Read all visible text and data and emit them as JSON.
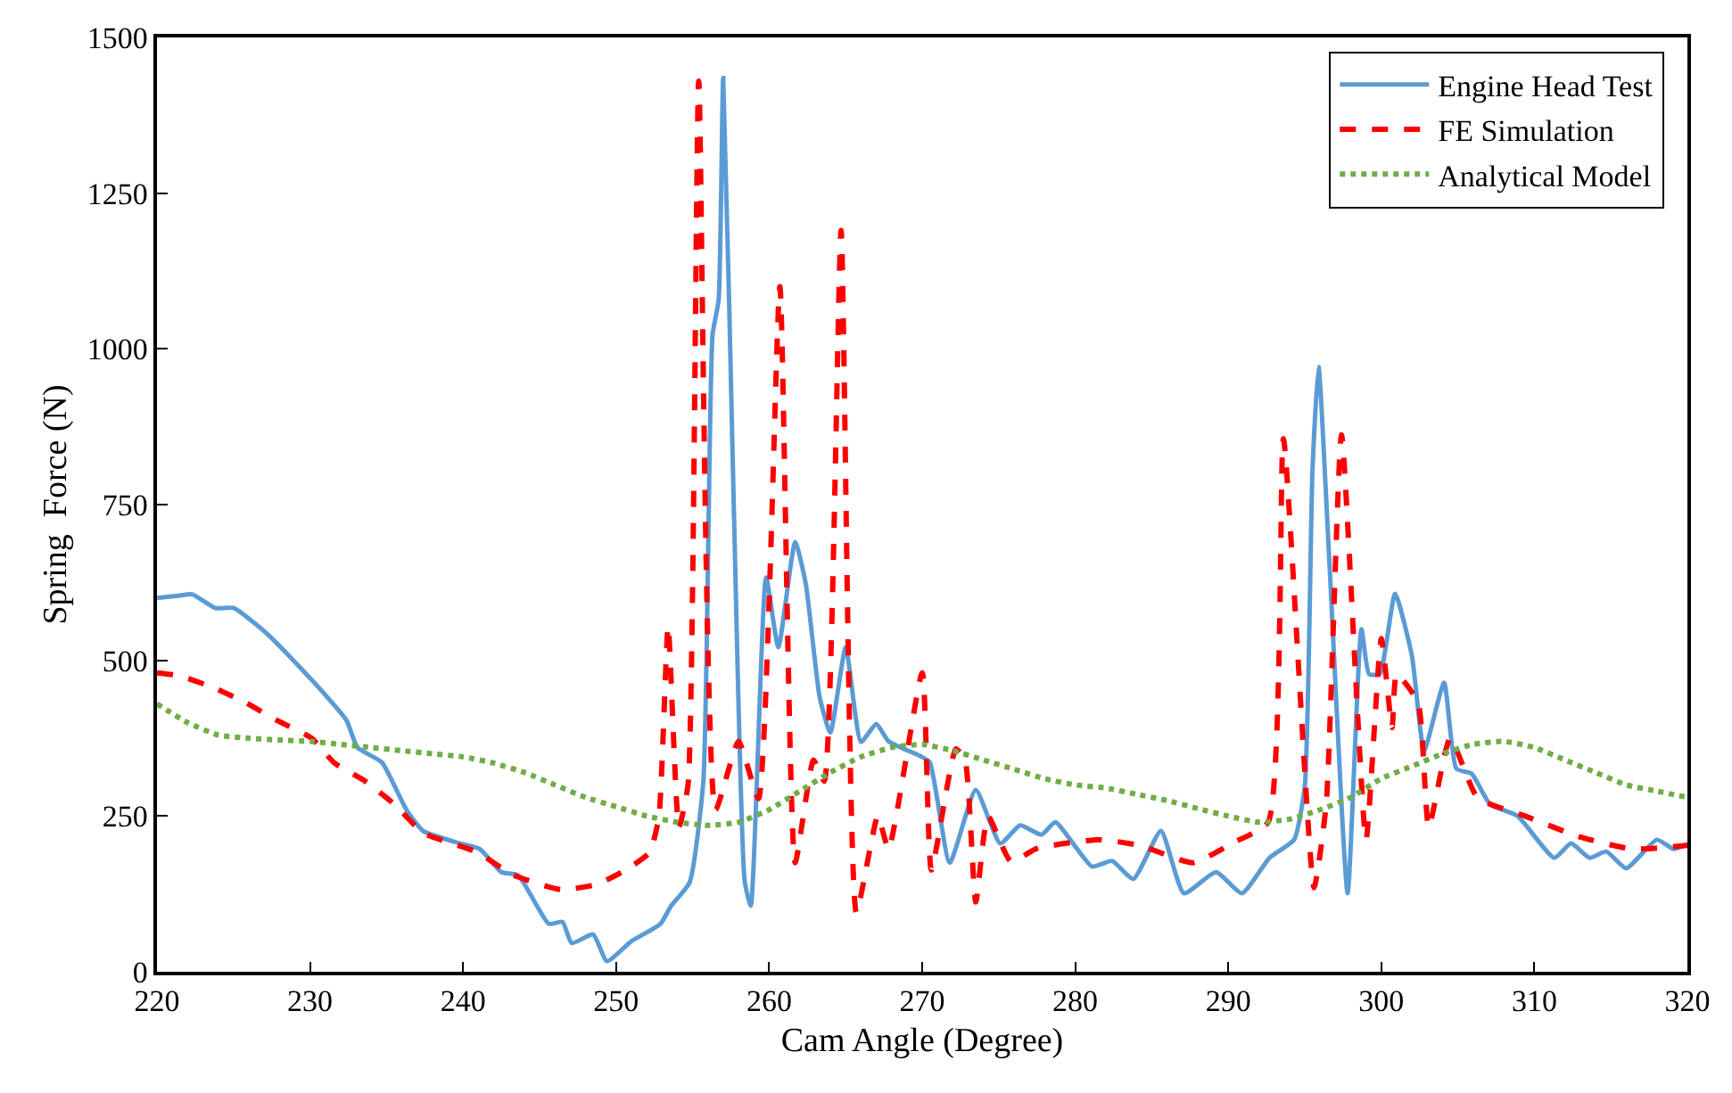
{
  "chart_data": {
    "type": "line",
    "xlabel": "Cam Angle (Degree)",
    "ylabel": "Spring  Force (N)",
    "xlim": [
      220,
      320
    ],
    "xticks": [
      220,
      230,
      240,
      250,
      260,
      270,
      280,
      290,
      300,
      310,
      320
    ],
    "ylim": [
      0,
      1500
    ],
    "yticks": [
      0,
      250,
      500,
      750,
      1000,
      1250,
      1500
    ],
    "legend": "top right",
    "marker": "none",
    "series": [
      {
        "name": "Engine Head Test",
        "color": "#5b9bd5",
        "line_style": "solid",
        "x": [
          220,
          221.5,
          222.3,
          223.8,
          225,
          227,
          229.3,
          231.3,
          232.4,
          233.1,
          234.7,
          236.3,
          237.4,
          239.8,
          241.1,
          242.5,
          243.6,
          245.6,
          246.5,
          247.1,
          248.5,
          249.4,
          251.0,
          252.9,
          253.6,
          254.8,
          255.7,
          256.3,
          256.7,
          257.0,
          257.7,
          258.4,
          258.8,
          259.8,
          260.6,
          261.7,
          262.4,
          263.3,
          264.0,
          265.0,
          266.0,
          267.0,
          267.8,
          269.9,
          270.5,
          271.8,
          273.5,
          275.1,
          276.4,
          277.8,
          278.7,
          281.1,
          282.4,
          283.8,
          285.6,
          287.1,
          289.2,
          290.9,
          292.7,
          294.3,
          295.0,
          295.5,
          295.9,
          296.6,
          297.8,
          298.7,
          299.2,
          299.9,
          300.9,
          302.0,
          302.8,
          304.1,
          304.9,
          305.9,
          307.1,
          308.9,
          311.3,
          312.4,
          313.6,
          314.7,
          316.0,
          318.0,
          319.1,
          320
        ],
        "values": [
          600,
          604,
          606,
          584,
          584,
          547,
          490,
          436,
          403,
          360,
          336,
          260,
          226,
          206,
          197,
          160,
          155,
          77,
          80,
          46,
          60,
          17,
          49,
          77,
          106,
          143,
          306,
          1022,
          1079,
          1435,
          736,
          146,
          106,
          633,
          521,
          690,
          622,
          441,
          384,
          521,
          369,
          398,
          370,
          346,
          336,
          175,
          292,
          206,
          235,
          220,
          240,
          169,
          178,
          149,
          226,
          126,
          160,
          126,
          183,
          212,
          298,
          804,
          971,
          661,
          126,
          550,
          478,
          478,
          607,
          507,
          355,
          464,
          326,
          318,
          269,
          250,
          183,
          206,
          183,
          193,
          166,
          212,
          197,
          205
        ]
      },
      {
        "name": "FE Simulation",
        "color": "#ff0000",
        "line_style": "dashed",
        "x": [
          220,
          221.5,
          223.8,
          225.8,
          227.8,
          230.1,
          231.6,
          233.6,
          235.5,
          237.4,
          240.9,
          243.3,
          246.4,
          248.7,
          250.6,
          252.2,
          252.8,
          253.4,
          254.1,
          254.7,
          255.4,
          256.5,
          258.0,
          259.3,
          260.7,
          261.7,
          262.9,
          263.6,
          264.7,
          265.7,
          267.1,
          267.8,
          270.0,
          270.6,
          272.2,
          272.8,
          273.5,
          274.3,
          275.8,
          277.5,
          281.5,
          284.2,
          287.7,
          290.3,
          292.6,
          293.6,
          295.6,
          296.4,
          297.4,
          299.0,
          300.0,
          300.7,
          301.0,
          302.4,
          303.1,
          304.5,
          306.3,
          309.4,
          312.9,
          316.4,
          320
        ],
        "values": [
          480,
          475,
          455,
          432,
          404,
          375,
          335,
          306,
          269,
          223,
          192,
          155,
          132,
          140,
          163,
          192,
          250,
          555,
          232,
          300,
          1430,
          260,
          370,
          278,
          1100,
          175,
          340,
          306,
          1190,
          95,
          250,
          197,
          480,
          163,
          358,
          340,
          112,
          250,
          177,
          198,
          212,
          203,
          175,
          207,
          240,
          856,
          135,
          269,
          862,
          212,
          535,
          392,
          478,
          432,
          232,
          375,
          279,
          250,
          217,
          197,
          203
        ]
      },
      {
        "name": "Analytical Model",
        "color": "#70ad47",
        "line_style": "dotted",
        "x": [
          220,
          222,
          224,
          226,
          228,
          230,
          232,
          234,
          236,
          238,
          240,
          242,
          244,
          246,
          248,
          250,
          252,
          254,
          256,
          258,
          260,
          262,
          264,
          266,
          268,
          270,
          272,
          274,
          276,
          278,
          280,
          282,
          284,
          286,
          288,
          290,
          292,
          294,
          296,
          298,
          300,
          302,
          304,
          306,
          308,
          310,
          312,
          314,
          316,
          318,
          320
        ],
        "values": [
          430,
          400,
          380,
          375,
          372,
          370,
          365,
          360,
          355,
          350,
          345,
          335,
          320,
          300,
          280,
          265,
          250,
          240,
          235,
          240,
          260,
          290,
          320,
          345,
          360,
          365,
          355,
          340,
          325,
          310,
          300,
          295,
          285,
          275,
          262,
          250,
          240,
          245,
          260,
          280,
          310,
          330,
          350,
          365,
          370,
          360,
          340,
          320,
          300,
          290,
          280
        ]
      }
    ]
  }
}
